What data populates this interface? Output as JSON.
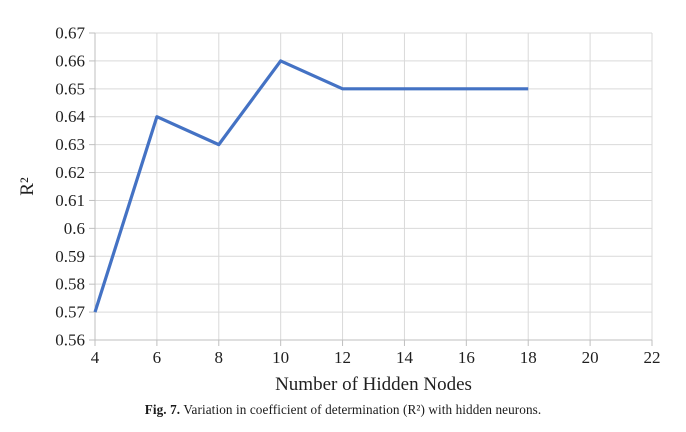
{
  "figure": {
    "caption_label": "Fig. 7.",
    "caption_text": "Variation in coefficient of determination (R²) with hidden neurons."
  },
  "chart_data": {
    "type": "line",
    "title": "",
    "xlabel": "Number of Hidden Nodes",
    "ylabel": "R²",
    "x": [
      4,
      6,
      8,
      10,
      12,
      14,
      16,
      18
    ],
    "values": [
      0.57,
      0.64,
      0.63,
      0.66,
      0.65,
      0.65,
      0.65,
      0.65
    ],
    "xlim": [
      4,
      22
    ],
    "ylim": [
      0.56,
      0.67
    ],
    "x_ticks": [
      4,
      6,
      8,
      10,
      12,
      14,
      16,
      18,
      20,
      22
    ],
    "x_tick_labels": [
      "4",
      "6",
      "8",
      "10",
      "12",
      "14",
      "16",
      "18",
      "20",
      "22"
    ],
    "y_ticks": [
      0.56,
      0.57,
      0.58,
      0.59,
      0.6,
      0.61,
      0.62,
      0.63,
      0.64,
      0.65,
      0.66,
      0.67
    ],
    "y_tick_labels": [
      "0.56",
      "0.57",
      "0.58",
      "0.59",
      "0.6",
      "0.61",
      "0.62",
      "0.63",
      "0.64",
      "0.65",
      "0.66",
      "0.67"
    ],
    "grid": true,
    "legend": "none",
    "line_color": "#4472C4",
    "grid_color": "#D9D9D9",
    "axis_color": "#BFBFBF",
    "text_color": "#1f1f1f"
  }
}
